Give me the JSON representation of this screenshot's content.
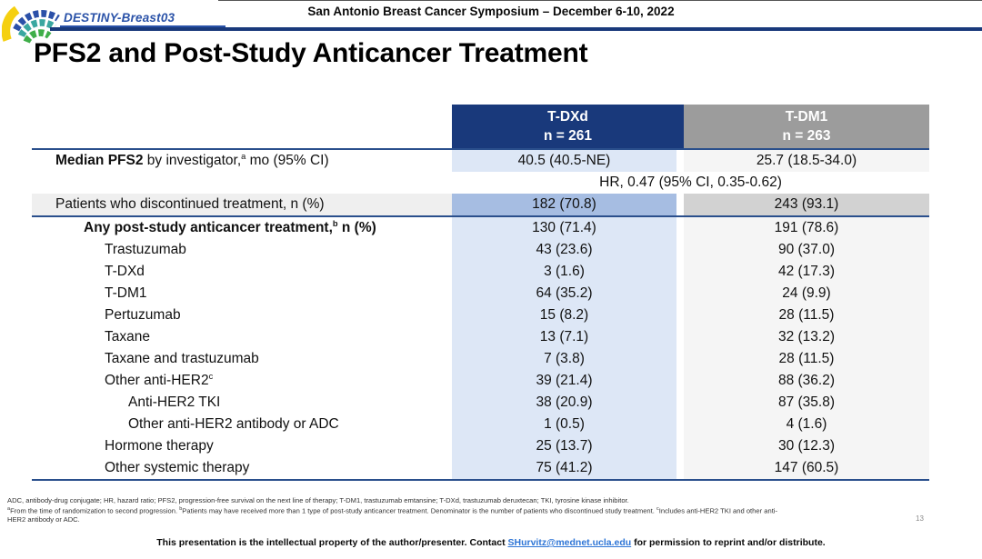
{
  "header": {
    "study_name": "DESTINY-Breast03",
    "symposium": "San Antonio Breast Cancer Symposium – December 6-10, 2022"
  },
  "title": "PFS2 and Post-Study Anticancer Treatment",
  "table": {
    "columns": [
      {
        "name": "T-DXd",
        "n": "n = 261"
      },
      {
        "name": "T-DM1",
        "n": "n = 263"
      }
    ],
    "rows": [
      {
        "type": "data",
        "indent": 0,
        "prefix_bold": "Median PFS2",
        "label": " by investigator,",
        "sup": "a",
        "tail": " mo (95% CI)",
        "v1": "40.5 (40.5-NE)",
        "v2": "25.7 (18.5-34.0)"
      },
      {
        "type": "span",
        "label": "HR, 0.47 (95% CI, 0.35-0.62)"
      },
      {
        "type": "data",
        "indent": 0,
        "label": "Patients who discontinued treatment, n (%)",
        "v1": "182 (70.8)",
        "v2": "243 (93.1)",
        "emphasis": true,
        "divider_after": true
      },
      {
        "type": "data",
        "indent": 1,
        "bold": true,
        "label": "Any post-study anticancer treatment,",
        "sup": "b",
        "tail": " n (%)",
        "v1": "130 (71.4)",
        "v2": "191 (78.6)"
      },
      {
        "type": "data",
        "indent": 2,
        "label": "Trastuzumab",
        "v1": "43 (23.6)",
        "v2": "90 (37.0)"
      },
      {
        "type": "data",
        "indent": 2,
        "label": "T-DXd",
        "v1": "3 (1.6)",
        "v2": "42 (17.3)"
      },
      {
        "type": "data",
        "indent": 2,
        "label": "T-DM1",
        "v1": "64 (35.2)",
        "v2": "24 (9.9)"
      },
      {
        "type": "data",
        "indent": 2,
        "label": "Pertuzumab",
        "v1": "15 (8.2)",
        "v2": "28 (11.5)"
      },
      {
        "type": "data",
        "indent": 2,
        "label": "Taxane",
        "v1": "13 (7.1)",
        "v2": "32 (13.2)"
      },
      {
        "type": "data",
        "indent": 2,
        "label": "Taxane and trastuzumab",
        "v1": "7 (3.8)",
        "v2": "28 (11.5)"
      },
      {
        "type": "data",
        "indent": 2,
        "label": "Other anti-HER2",
        "sup": "c",
        "v1": "39 (21.4)",
        "v2": "88 (36.2)"
      },
      {
        "type": "data",
        "indent": 3,
        "label": "Anti-HER2 TKI",
        "v1": "38 (20.9)",
        "v2": "87 (35.8)"
      },
      {
        "type": "data",
        "indent": 3,
        "label": "Other anti-HER2 antibody or ADC",
        "v1": "1 (0.5)",
        "v2": "4 (1.6)"
      },
      {
        "type": "data",
        "indent": 2,
        "label": "Hormone therapy",
        "v1": "25 (13.7)",
        "v2": "30 (12.3)"
      },
      {
        "type": "data",
        "indent": 2,
        "label": "Other systemic therapy",
        "v1": "75 (41.2)",
        "v2": "147 (60.5)"
      }
    ]
  },
  "footnotes": {
    "line1": "ADC, antibody-drug conjugate; HR, hazard ratio; PFS2, progression-free survival on the next line of therapy; T-DM1, trastuzumab emtansine; T-DXd, trastuzumab deruxtecan; TKI, tyrosine kinase inhibitor.",
    "line2_parts": [
      {
        "sup": "a"
      },
      {
        "text": "From the time of randomization to second progression. "
      },
      {
        "sup": "b"
      },
      {
        "text": "Patients may have received more than 1 type of post-study anticancer treatment. Denominator is the number of patients who discontinued study treatment. "
      },
      {
        "sup": "c"
      },
      {
        "text": "Includes anti-HER2 TKI and other anti-"
      }
    ],
    "line3": "HER2 antibody or ADC."
  },
  "page_number": "13",
  "footer": {
    "before_link": "This presentation is the intellectual property of the author/presenter. Contact ",
    "link": "SHurvitz@mednet.ucla.edu",
    "after_link": " for permission to reprint and/or distribute."
  },
  "colors": {
    "navy": "#19397b",
    "gray-hdr": "#9c9c9c",
    "col1": "#dde7f6",
    "col2": "#f5f5f5",
    "col1dark": "#a6bde2",
    "col2dark": "#d2d2d2",
    "labelband": "#efefef",
    "line": "#2a4f8c",
    "blue-accent": "#2a52a8",
    "link": "#2e75d6"
  }
}
